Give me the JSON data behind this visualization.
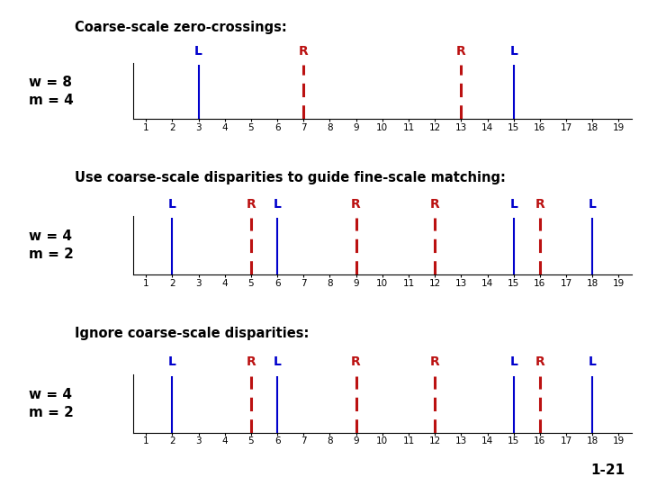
{
  "title1": "Coarse-scale zero-crossings:",
  "title2": "Use coarse-scale disparities to guide fine-scale matching:",
  "title3": "Ignore coarse-scale disparities:",
  "label1": "w = 8\nm = 4",
  "label2": "w = 4\nm = 2",
  "label3": "w = 4\nm = 2",
  "panel1": {
    "blue_lines": [
      3,
      15
    ],
    "red_lines": [
      7,
      13
    ],
    "blue_labels": [
      [
        "L",
        3
      ],
      [
        "L",
        15
      ]
    ],
    "red_labels": [
      [
        "R",
        7
      ],
      [
        "R",
        13
      ]
    ],
    "xlim": [
      0.5,
      19.5
    ],
    "xticks": [
      1,
      2,
      3,
      4,
      5,
      6,
      7,
      8,
      9,
      10,
      11,
      12,
      13,
      14,
      15,
      16,
      17,
      18,
      19
    ]
  },
  "panel2": {
    "blue_lines": [
      2,
      6,
      15,
      18
    ],
    "red_lines": [
      5,
      9,
      12,
      16
    ],
    "blue_labels": [
      [
        "L",
        2
      ],
      [
        "L",
        6
      ],
      [
        "L",
        15
      ],
      [
        "L",
        18
      ]
    ],
    "red_labels": [
      [
        "R",
        5
      ],
      [
        "R",
        9
      ],
      [
        "R",
        12
      ],
      [
        "R",
        16
      ]
    ],
    "xlim": [
      0.5,
      19.5
    ],
    "xticks": [
      1,
      2,
      3,
      4,
      5,
      6,
      7,
      8,
      9,
      10,
      11,
      12,
      13,
      14,
      15,
      16,
      17,
      18,
      19
    ]
  },
  "panel3": {
    "blue_lines": [
      2,
      6,
      15,
      18
    ],
    "red_lines": [
      5,
      9,
      12,
      16
    ],
    "blue_labels": [
      [
        "L",
        2
      ],
      [
        "L",
        6
      ],
      [
        "L",
        15
      ],
      [
        "L",
        18
      ]
    ],
    "red_labels": [
      [
        "R",
        5
      ],
      [
        "R",
        9
      ],
      [
        "R",
        12
      ],
      [
        "R",
        16
      ]
    ],
    "xlim": [
      0.5,
      19.5
    ],
    "xticks": [
      1,
      2,
      3,
      4,
      5,
      6,
      7,
      8,
      9,
      10,
      11,
      12,
      13,
      14,
      15,
      16,
      17,
      18,
      19
    ]
  },
  "blue_color": "#0000cc",
  "red_color": "#bb1111",
  "bg_color": "#ffffff",
  "title_fontsize": 10.5,
  "wm_fontsize": 11,
  "tick_fontsize": 7.5,
  "line_label_fontsize": 10,
  "page_label": "1-21",
  "page_label_fontsize": 11
}
